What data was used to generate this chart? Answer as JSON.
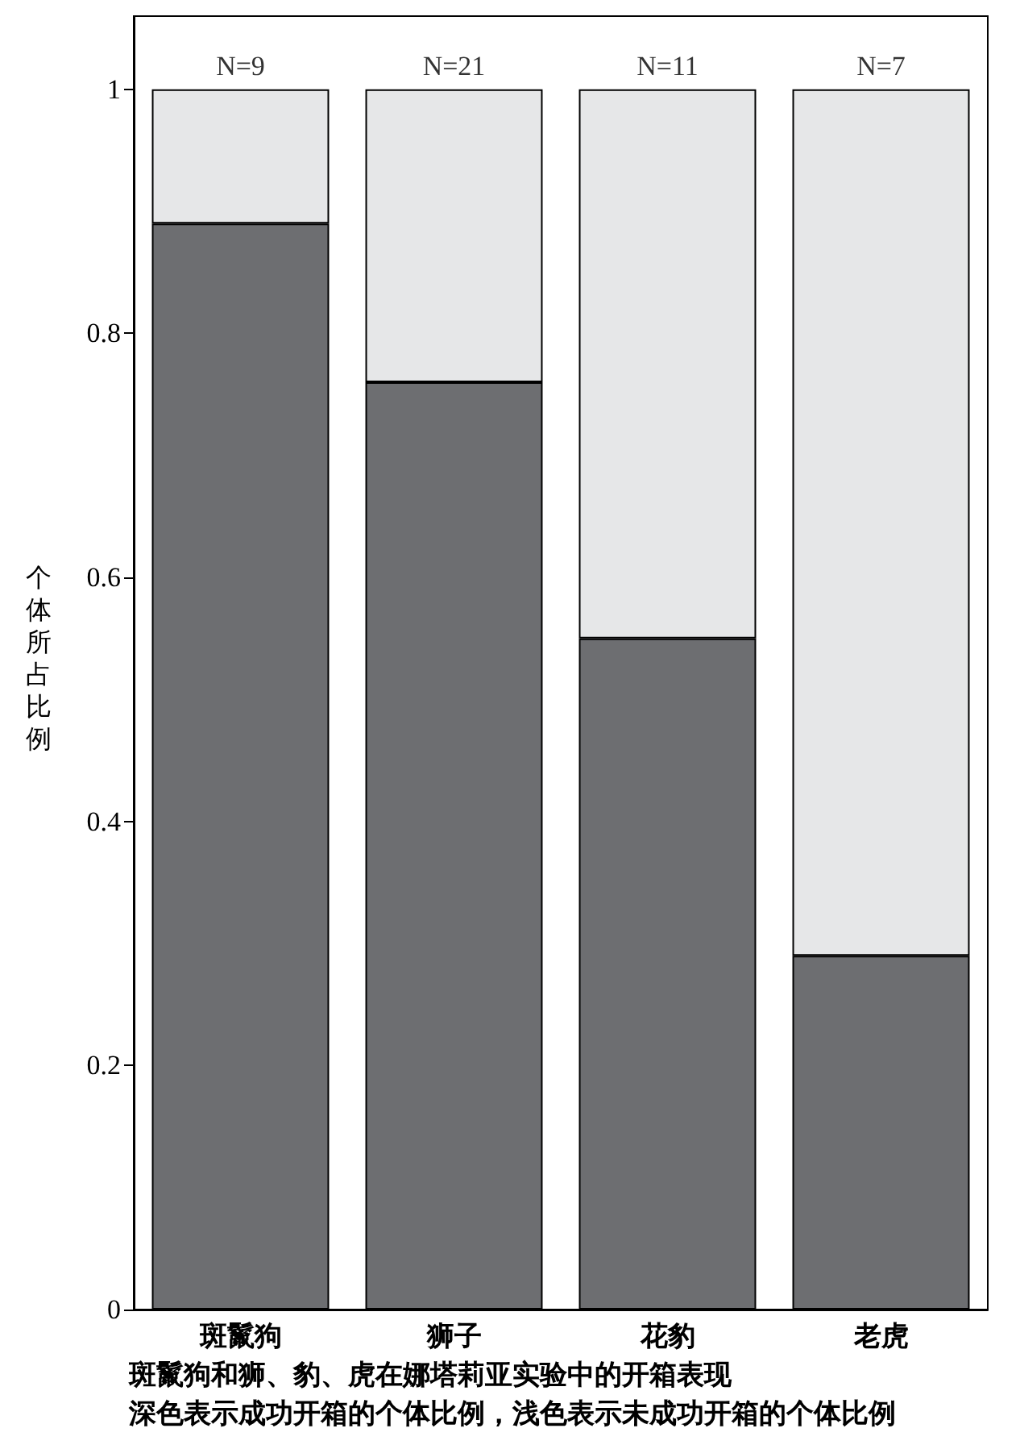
{
  "chart_data": {
    "type": "bar",
    "stacked": true,
    "ylabel": "个体所占比例",
    "categories": [
      "斑鬣狗",
      "狮子",
      "花豹",
      "老虎"
    ],
    "series": [
      {
        "color": "#6d6e71",
        "values": [
          0.89,
          0.76,
          0.55,
          0.29
        ]
      },
      {
        "color": "#e6e7e8",
        "values": [
          0.11,
          0.24,
          0.45,
          0.71
        ]
      }
    ],
    "ylim": [
      0,
      1.06
    ],
    "yticks": [
      0,
      0.2,
      0.4,
      0.6,
      0.8,
      1
    ],
    "grid": false,
    "annotations": [
      {
        "text": "N=9",
        "x": "斑鬣狗",
        "y": 1
      },
      {
        "text": "N=21",
        "x": "狮子",
        "y": 1
      },
      {
        "text": "N=11",
        "x": "花豹",
        "y": 1
      },
      {
        "text": "N=7",
        "x": "老虎",
        "y": 1
      },
      "斑鬣狗和狮、豹、虎在娜塔莉亚实验中的开箱表现",
      "深色表示成功开箱的个体比例，浅色表示未成功开箱的个体比例"
    ]
  }
}
